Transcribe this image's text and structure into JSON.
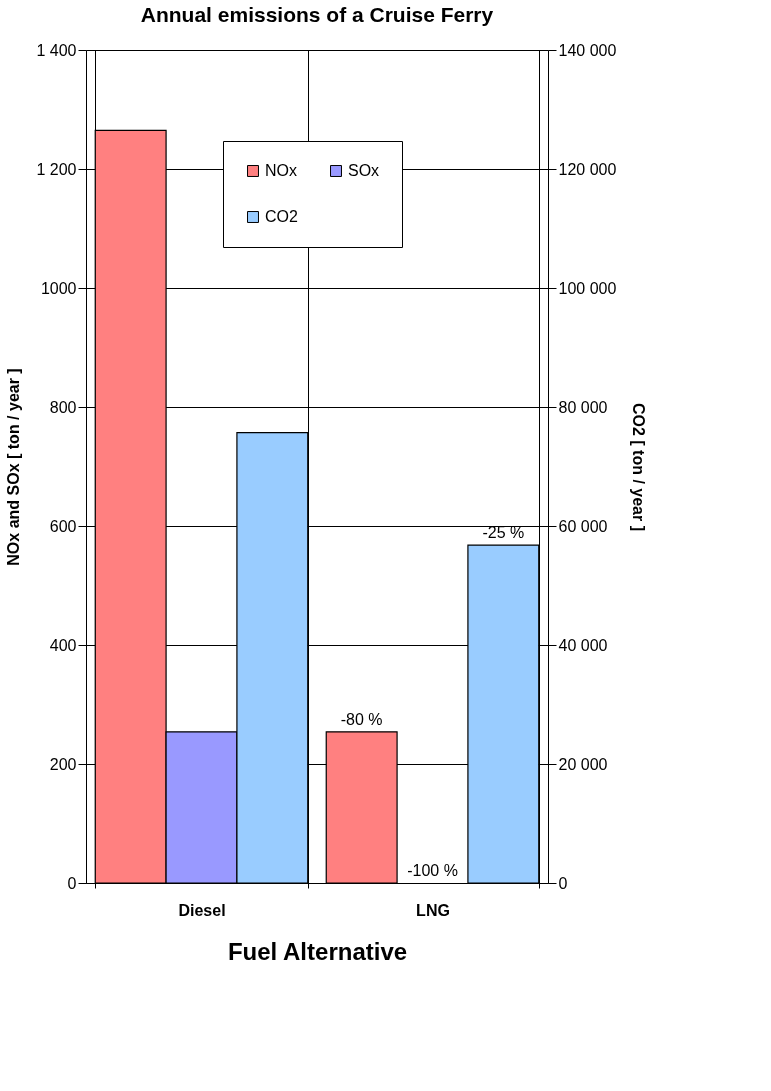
{
  "chart_data": {
    "type": "bar",
    "title": "Annual emissions of a Cruise Ferry",
    "xlabel": "Fuel Alternative",
    "ylabel": "NOx and SOx [ ton / year ]",
    "y2label": "CO2 [ ton / year ]",
    "categories": [
      "Diesel",
      "LNG"
    ],
    "series": [
      {
        "name": "NOx",
        "color": "#ff8080",
        "values": [
          1265,
          254
        ]
      },
      {
        "name": "SOx",
        "color": "#9999ff",
        "values": [
          254,
          0
        ]
      },
      {
        "name": "CO2",
        "color": "#99ccff",
        "values": [
          75700,
          56800
        ],
        "axis": "y2"
      }
    ],
    "annotations": [
      "-80 %",
      "-100 %",
      "-25 %"
    ],
    "ylim": [
      0,
      1400
    ],
    "yticks": [
      0,
      200,
      400,
      600,
      800,
      1000,
      {
        "value": 1200,
        "label": "1 200"
      },
      {
        "value": 1400,
        "label": "1 400"
      }
    ],
    "y2lim": [
      0,
      140000
    ],
    "y2ticks": [
      0,
      {
        "value": 20000,
        "label": "20 000"
      },
      {
        "value": 40000,
        "label": "40 000"
      },
      {
        "value": 60000,
        "label": "60 000"
      },
      {
        "value": 80000,
        "label": "80 000"
      },
      {
        "value": 100000,
        "label": "100 000"
      },
      {
        "value": 120000,
        "label": "120 000"
      },
      {
        "value": 140000,
        "label": "140 000"
      }
    ],
    "grid": true,
    "legend": "top"
  }
}
